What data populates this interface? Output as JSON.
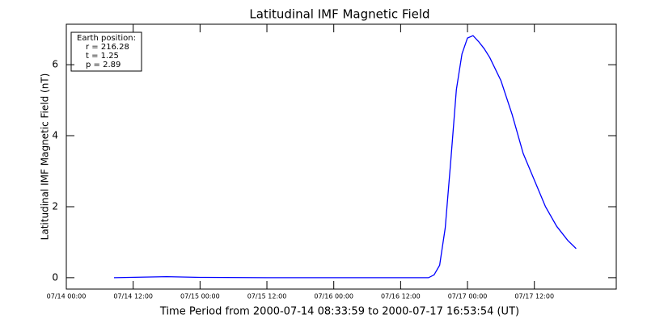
{
  "chart_data": {
    "type": "line",
    "title": "Latitudinal IMF Magnetic Field",
    "x_label": "Time Period from 2000-07-14 08:33:59 to 2000-07-17 16:53:54 (UT)",
    "y_label": "Latitudinal IMF Magnetic Field (nT)",
    "annotations": [
      "Earth position:",
      "r = 216.28",
      "t = 1.25",
      "p = 2.89"
    ],
    "xlim": [
      "07/14 00:00",
      "07/18 02:42"
    ],
    "xticks": [
      "07/14 00:00",
      "07/14 12:00",
      "07/15 00:00",
      "07/15 12:00",
      "07/16 00:00",
      "07/16 12:00",
      "07/17 00:00",
      "07/17 12:00"
    ],
    "ylim": [
      -0.32,
      7.14
    ],
    "yticks": [
      0,
      2,
      4,
      6
    ],
    "series": [
      {
        "color": "#0000ff",
        "x": [
          "07/14 08:34",
          "07/14 18:00",
          "07/15 00:00",
          "07/15 12:00",
          "07/16 00:00",
          "07/16 12:00",
          "07/16 17:00",
          "07/16 18:00",
          "07/16 19:00",
          "07/16 20:00",
          "07/16 21:00",
          "07/16 22:00",
          "07/16 23:00",
          "07/17 00:00",
          "07/17 01:00",
          "07/17 02:00",
          "07/17 03:00",
          "07/17 04:00",
          "07/17 06:00",
          "07/17 08:00",
          "07/17 10:00",
          "07/17 12:00",
          "07/17 14:00",
          "07/17 16:00",
          "07/17 18:00",
          "07/17 19:30"
        ],
        "values": [
          0.0,
          0.03,
          0.01,
          0,
          0,
          0,
          0.0,
          0.08,
          0.35,
          1.4,
          3.3,
          5.3,
          6.3,
          6.75,
          6.82,
          6.65,
          6.45,
          6.2,
          5.55,
          4.6,
          3.5,
          2.75,
          2.0,
          1.45,
          1.05,
          0.82
        ]
      }
    ]
  }
}
